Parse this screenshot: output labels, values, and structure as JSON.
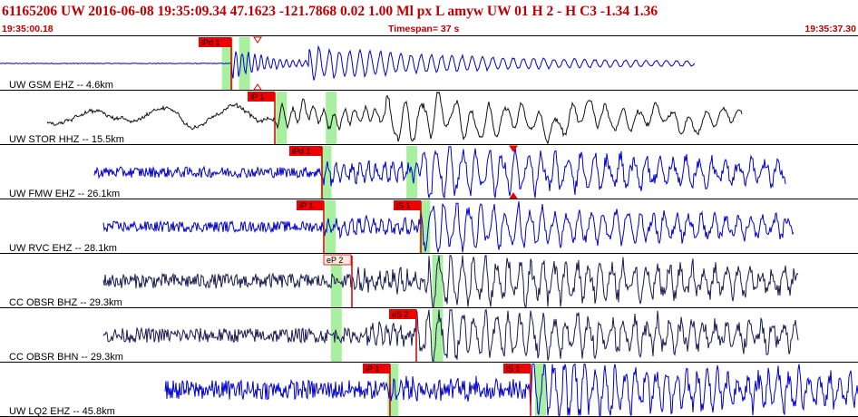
{
  "header": {
    "event_line": "61165206 UW 2016-06-08 19:35:09.34   47.1623 -121.7868   0.02  1.00 Ml  px  L amyw     UW 01  H   2  -  H C3   -1.34  1.36",
    "start_time": "19:35:00.18",
    "end_time": "19:35:37.30",
    "timespan": "Timespan=  37 s"
  },
  "colors": {
    "header_text": "#c00000",
    "pick_flag": "#ee0000",
    "pick_line": "#cc0000",
    "window_band": "#a8f0a0",
    "trace_blue": "#0000cc",
    "trace_black": "#111111",
    "trace_navy": "#1a1a50",
    "divider": "#000000"
  },
  "traces": [
    {
      "label": "UW GSM EHZ -- 4.6km",
      "color": "blue",
      "signal": {
        "start": 0.0,
        "end": 0.81,
        "noise": 0.015,
        "onset": 0.27,
        "amp": 0.75,
        "freq": 0.9,
        "decay": 5.0,
        "s_onset": 0.36,
        "s_amp": 0.7,
        "coda": 0.03
      },
      "picks": [
        {
          "label": "iPd 1",
          "t": 0.27,
          "phase": "P"
        }
      ],
      "bands": [
        0.265,
        0.285
      ],
      "markers": [
        {
          "t": 0.3,
          "kind": "hollow"
        }
      ]
    },
    {
      "label": "UW STOR HHZ -- 15.5km",
      "color": "black",
      "signal": {
        "start": 0.055,
        "end": 0.865,
        "noise": 0.12,
        "lowfreq": true,
        "onset": 0.32,
        "amp": 0.55,
        "freq": 0.55,
        "decay": 1.2,
        "s_onset": 0.45,
        "s_amp": 0.7,
        "coda": 0.25
      },
      "picks": [
        {
          "label": "iP 1",
          "t": 0.32,
          "phase": "P"
        }
      ],
      "bands": [
        0.328,
        0.386
      ],
      "markers": []
    },
    {
      "label": "UW FMW EHZ -- 26.1km",
      "color": "blue",
      "signal": {
        "start": 0.11,
        "end": 0.915,
        "noise": 0.22,
        "onset": 0.375,
        "amp": 0.45,
        "freq": 0.7,
        "decay": 0.6,
        "s_onset": 0.49,
        "s_amp": 0.7,
        "coda": 0.38
      },
      "picks": [
        {
          "label": "iPd 1",
          "t": 0.375,
          "phase": "P"
        }
      ],
      "bands": [
        0.38,
        0.48
      ],
      "markers": [
        {
          "t": 0.598,
          "kind": "filled"
        }
      ]
    },
    {
      "label": "UW RVC EHZ -- 28.1km",
      "color": "blue",
      "signal": {
        "start": 0.12,
        "end": 0.925,
        "noise": 0.22,
        "onset": 0.377,
        "amp": 0.35,
        "freq": 0.75,
        "decay": 0.6,
        "s_onset": 0.49,
        "s_amp": 0.8,
        "coda": 0.3
      },
      "picks": [
        {
          "label": "iP 1",
          "t": 0.377,
          "phase": "P"
        },
        {
          "label": "iS 1",
          "t": 0.49,
          "phase": "S"
        }
      ],
      "bands": [
        0.385,
        0.495
      ],
      "markers": []
    },
    {
      "label": "CC OBSR BHZ -- 29.3km",
      "color": "navy",
      "signal": {
        "start": 0.12,
        "end": 0.93,
        "noise": 0.3,
        "onset": 0.41,
        "amp": 0.35,
        "freq": 0.8,
        "decay": 0.6,
        "s_onset": 0.5,
        "s_amp": 0.75,
        "coda": 0.4
      },
      "picks": [
        {
          "label": "eP 2",
          "t": 0.41,
          "phase": "P",
          "pending": true
        }
      ],
      "bands": [
        0.392,
        0.51
      ],
      "markers": []
    },
    {
      "label": "CC OBSR BHN -- 29.3km",
      "color": "navy",
      "signal": {
        "start": 0.12,
        "end": 0.93,
        "noise": 0.3,
        "onset": 0.42,
        "amp": 0.35,
        "freq": 0.8,
        "decay": 0.6,
        "s_onset": 0.485,
        "s_amp": 0.75,
        "coda": 0.4
      },
      "picks": [
        {
          "label": "eS 2",
          "t": 0.485,
          "phase": "S"
        }
      ],
      "bands": [
        0.392,
        0.51
      ],
      "markers": []
    },
    {
      "label": "UW LQ2 EHZ -- 45.8km",
      "color": "blue",
      "signal": {
        "start": 0.192,
        "end": 1.0,
        "noise": 0.4,
        "onset": 0.455,
        "amp": 0.3,
        "freq": 0.9,
        "decay": 0.6,
        "s_onset": 0.618,
        "s_amp": 0.9,
        "coda": 0.45
      },
      "picks": [
        {
          "label": "iP 1",
          "t": 0.455,
          "phase": "P"
        },
        {
          "label": "iS 1",
          "t": 0.618,
          "phase": "S"
        }
      ],
      "bands": [
        0.458,
        0.63
      ],
      "markers": []
    }
  ]
}
